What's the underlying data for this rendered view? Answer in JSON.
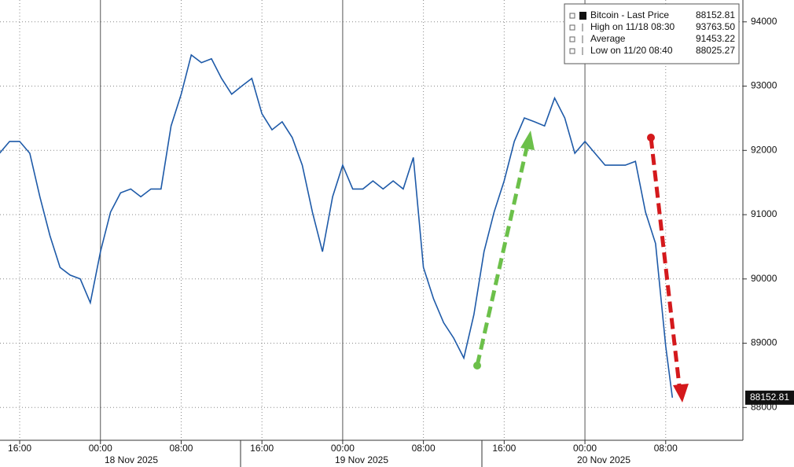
{
  "chart_data": {
    "type": "line",
    "x": [
      "2025-11-17T14:00",
      "2025-11-17T15:00",
      "2025-11-17T16:00",
      "2025-11-17T17:00",
      "2025-11-17T18:00",
      "2025-11-17T19:00",
      "2025-11-17T20:00",
      "2025-11-17T21:00",
      "2025-11-17T22:00",
      "2025-11-17T23:00",
      "2025-11-18T00:00",
      "2025-11-18T01:00",
      "2025-11-18T02:00",
      "2025-11-18T03:00",
      "2025-11-18T04:00",
      "2025-11-18T05:00",
      "2025-11-18T06:00",
      "2025-11-18T07:00",
      "2025-11-18T08:00",
      "2025-11-18T09:00",
      "2025-11-18T10:00",
      "2025-11-18T11:00",
      "2025-11-18T12:00",
      "2025-11-18T13:00",
      "2025-11-18T14:00",
      "2025-11-18T15:00",
      "2025-11-18T16:00",
      "2025-11-18T17:00",
      "2025-11-18T18:00",
      "2025-11-18T19:00",
      "2025-11-18T20:00",
      "2025-11-18T21:00",
      "2025-11-18T22:00",
      "2025-11-18T23:00",
      "2025-11-19T00:00",
      "2025-11-19T01:00",
      "2025-11-19T02:00",
      "2025-11-19T03:00",
      "2025-11-19T04:00",
      "2025-11-19T05:00",
      "2025-11-19T06:00",
      "2025-11-19T07:00",
      "2025-11-19T08:00",
      "2025-11-19T09:00",
      "2025-11-19T10:00",
      "2025-11-19T11:00",
      "2025-11-19T12:00",
      "2025-11-19T13:00",
      "2025-11-19T14:00",
      "2025-11-19T15:00",
      "2025-11-19T16:00",
      "2025-11-19T17:00",
      "2025-11-19T18:00",
      "2025-11-19T19:00",
      "2025-11-19T20:00",
      "2025-11-19T21:00",
      "2025-11-19T22:00",
      "2025-11-19T23:00",
      "2025-11-20T00:00",
      "2025-11-20T01:00",
      "2025-11-20T02:00",
      "2025-11-20T03:00",
      "2025-11-20T04:00",
      "2025-11-20T05:00",
      "2025-11-20T06:00",
      "2025-11-20T07:00",
      "2025-11-20T08:00",
      "2025-11-20T08:40"
    ],
    "series": [
      {
        "name": "Bitcoin - Last Price",
        "color": "#1e5aa8",
        "values": [
          91955,
          92140,
          92140,
          91955,
          91280,
          90670,
          90180,
          90060,
          90000,
          89630,
          90425,
          91040,
          91340,
          91400,
          91280,
          91400,
          91400,
          92380,
          92875,
          93485,
          93365,
          93425,
          93120,
          92875,
          93000,
          93120,
          92570,
          92320,
          92445,
          92200,
          91770,
          91040,
          90425,
          91280,
          91770,
          91400,
          91400,
          91525,
          91400,
          91525,
          91400,
          91890,
          90180,
          89690,
          89320,
          89080,
          88770,
          89445,
          90425,
          91040,
          91525,
          92140,
          92505,
          92445,
          92380,
          92815,
          92505,
          91955,
          92140,
          91955,
          91770,
          91770,
          91770,
          91830,
          91040,
          90550,
          88955,
          88152.81
        ]
      }
    ],
    "legend": [
      {
        "label": "Bitcoin - Last Price",
        "value": 88152.81
      },
      {
        "label": "High on 11/18 08:30",
        "value": {
          "value": 93763.5,
          "label": "93763.50"
        }
      },
      {
        "label": "Average",
        "value": 91453.22
      },
      {
        "label": "Low on 11/20 08:40",
        "value": 88025.27
      }
    ],
    "xlim": [
      "2025-11-17T14:03",
      "2025-11-20T15:39"
    ],
    "xticks": [
      {
        "value": "2025-11-17T16:00",
        "label": "16:00"
      },
      {
        "value": "2025-11-18T00:00",
        "label": "00:00"
      },
      {
        "value": "2025-11-18T08:00",
        "label": "08:00"
      },
      {
        "value": "2025-11-18T16:00",
        "label": "16:00"
      },
      {
        "value": "2025-11-19T00:00",
        "label": "00:00"
      },
      {
        "value": "2025-11-19T08:00",
        "label": "08:00"
      },
      {
        "value": "2025-11-19T16:00",
        "label": "16:00"
      },
      {
        "value": "2025-11-20T00:00",
        "label": "00:00"
      },
      {
        "value": "2025-11-20T08:00",
        "label": "08:00"
      }
    ],
    "date_labels": [
      "18 Nov 2025",
      "19 Nov 2025",
      "20 Nov 2025"
    ],
    "ylim": [
      87490,
      94340
    ],
    "yticks": [
      88000,
      89000,
      90000,
      91000,
      92000,
      93000,
      94000
    ],
    "grid": true
  }
}
